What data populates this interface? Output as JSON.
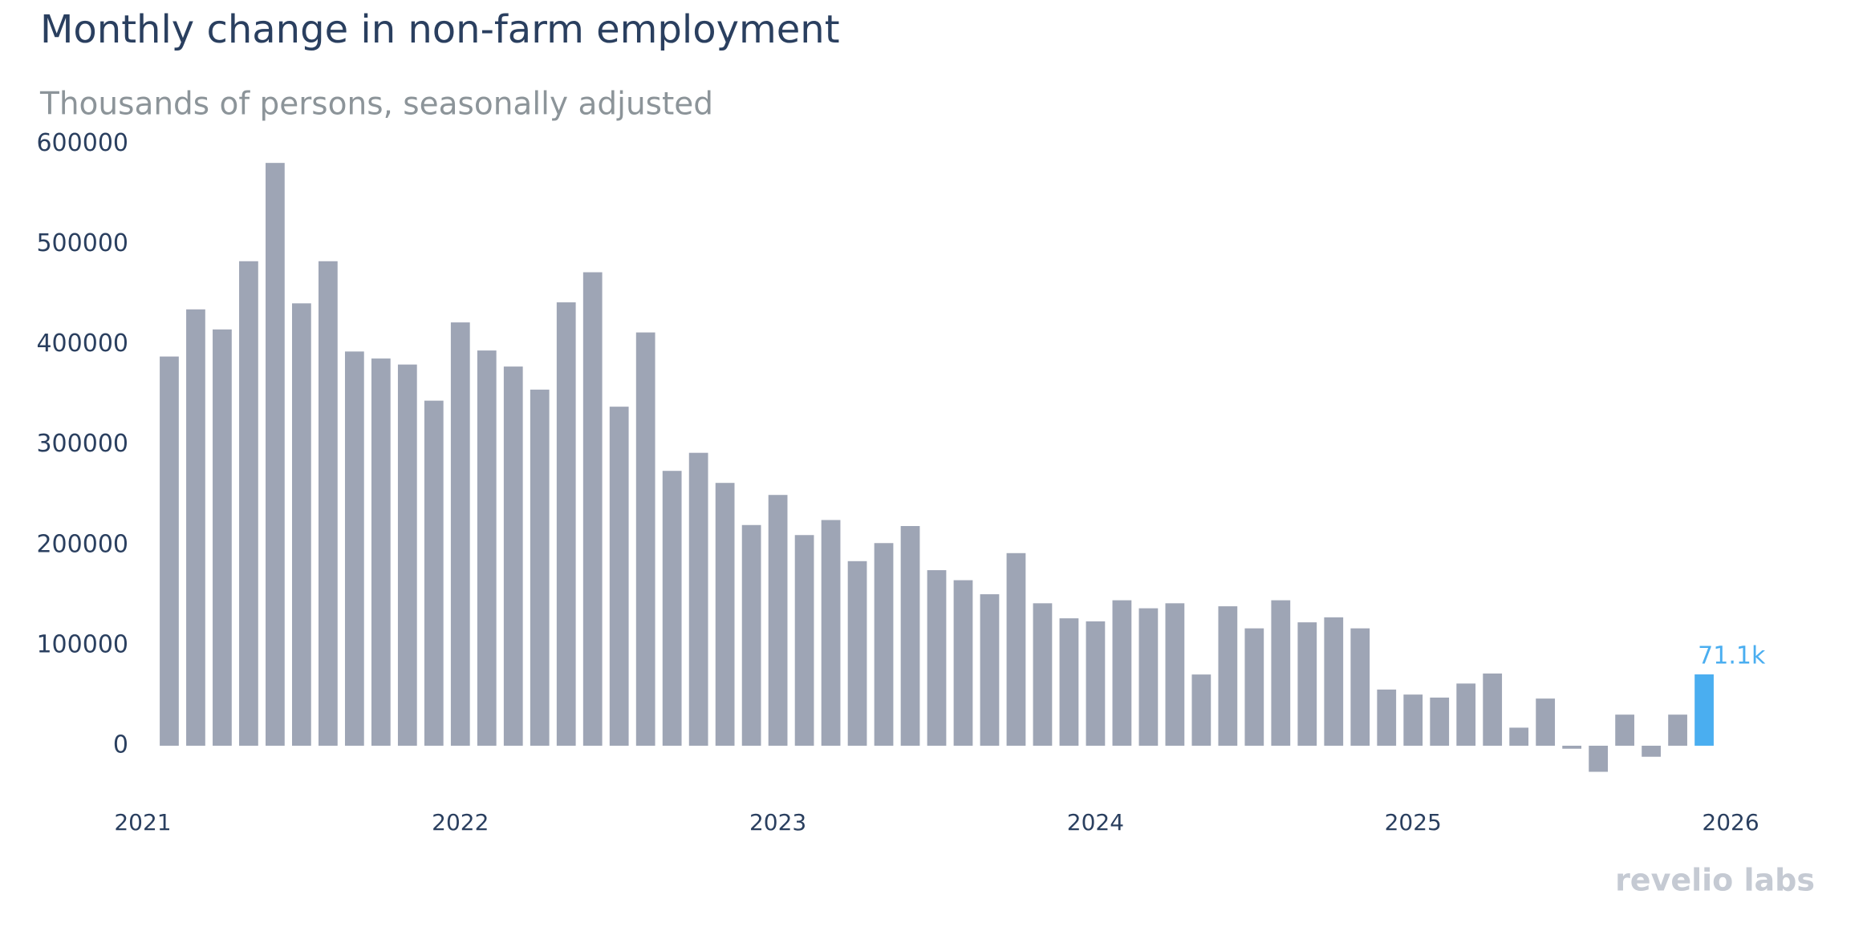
{
  "chart_data": {
    "type": "bar",
    "title": "Monthly change in non-farm employment",
    "subtitle": "Thousands of persons, seasonally adjusted",
    "x": [
      "2021-02",
      "2021-03",
      "2021-04",
      "2021-05",
      "2021-06",
      "2021-07",
      "2021-08",
      "2021-09",
      "2021-10",
      "2021-11",
      "2021-12",
      "2022-01",
      "2022-02",
      "2022-03",
      "2022-04",
      "2022-05",
      "2022-06",
      "2022-07",
      "2022-08",
      "2022-09",
      "2022-10",
      "2022-11",
      "2022-12",
      "2023-01",
      "2023-02",
      "2023-03",
      "2023-04",
      "2023-05",
      "2023-06",
      "2023-07",
      "2023-08",
      "2023-09",
      "2023-10",
      "2023-11",
      "2023-12",
      "2024-01",
      "2024-02",
      "2024-03",
      "2024-04",
      "2024-05",
      "2024-06",
      "2024-07",
      "2024-08",
      "2024-09",
      "2024-10",
      "2024-11",
      "2024-12",
      "2025-01",
      "2025-02",
      "2025-03",
      "2025-04",
      "2025-05",
      "2025-06",
      "2025-07",
      "2025-08",
      "2025-09",
      "2025-10",
      "2025-11",
      "2025-12"
    ],
    "values": [
      388000,
      435000,
      415000,
      483000,
      581000,
      441000,
      483000,
      393000,
      386000,
      380000,
      344000,
      422000,
      394000,
      378000,
      355000,
      442000,
      472000,
      338000,
      412000,
      274000,
      292000,
      262000,
      220000,
      250000,
      210000,
      225000,
      184000,
      202000,
      219000,
      175000,
      165000,
      151000,
      192000,
      142000,
      127000,
      124000,
      145000,
      137000,
      142000,
      71000,
      139000,
      117000,
      145000,
      123000,
      128000,
      117000,
      56000,
      51000,
      48000,
      62000,
      72000,
      18000,
      47000,
      -3000,
      -26000,
      31000,
      -11000,
      31000,
      71100
    ],
    "value_labels": [
      null,
      null,
      null,
      null,
      null,
      null,
      null,
      null,
      null,
      null,
      null,
      null,
      null,
      null,
      null,
      null,
      null,
      null,
      null,
      null,
      null,
      null,
      null,
      null,
      null,
      null,
      null,
      null,
      null,
      null,
      null,
      null,
      null,
      null,
      null,
      null,
      null,
      null,
      null,
      null,
      null,
      null,
      null,
      null,
      null,
      null,
      null,
      null,
      null,
      null,
      null,
      null,
      null,
      null,
      null,
      null,
      null,
      null,
      "71.1k"
    ],
    "color": "#9ea5b5",
    "colors": [
      "#9ea5b5",
      "#9ea5b5",
      "#9ea5b5",
      "#9ea5b5",
      "#9ea5b5",
      "#9ea5b5",
      "#9ea5b5",
      "#9ea5b5",
      "#9ea5b5",
      "#9ea5b5",
      "#9ea5b5",
      "#9ea5b5",
      "#9ea5b5",
      "#9ea5b5",
      "#9ea5b5",
      "#9ea5b5",
      "#9ea5b5",
      "#9ea5b5",
      "#9ea5b5",
      "#9ea5b5",
      "#9ea5b5",
      "#9ea5b5",
      "#9ea5b5",
      "#9ea5b5",
      "#9ea5b5",
      "#9ea5b5",
      "#9ea5b5",
      "#9ea5b5",
      "#9ea5b5",
      "#9ea5b5",
      "#9ea5b5",
      "#9ea5b5",
      "#9ea5b5",
      "#9ea5b5",
      "#9ea5b5",
      "#9ea5b5",
      "#9ea5b5",
      "#9ea5b5",
      "#9ea5b5",
      "#9ea5b5",
      "#9ea5b5",
      "#9ea5b5",
      "#9ea5b5",
      "#9ea5b5",
      "#9ea5b5",
      "#9ea5b5",
      "#9ea5b5",
      "#9ea5b5",
      "#9ea5b5",
      "#9ea5b5",
      "#9ea5b5",
      "#9ea5b5",
      "#9ea5b5",
      "#9ea5b5",
      "#9ea5b5",
      "#9ea5b5",
      "#9ea5b5",
      "#9ea5b5",
      "#4aaef0"
    ],
    "xlim": [
      2020.85,
      2026.25
    ],
    "xticks": [
      2021,
      2022,
      2023,
      2024,
      2025,
      2026
    ],
    "ylim": [
      -50000,
      600000
    ],
    "yticks": [
      0,
      100000,
      200000,
      300000,
      400000,
      500000,
      600000
    ],
    "grid": false,
    "watermark": "revelio labs"
  }
}
